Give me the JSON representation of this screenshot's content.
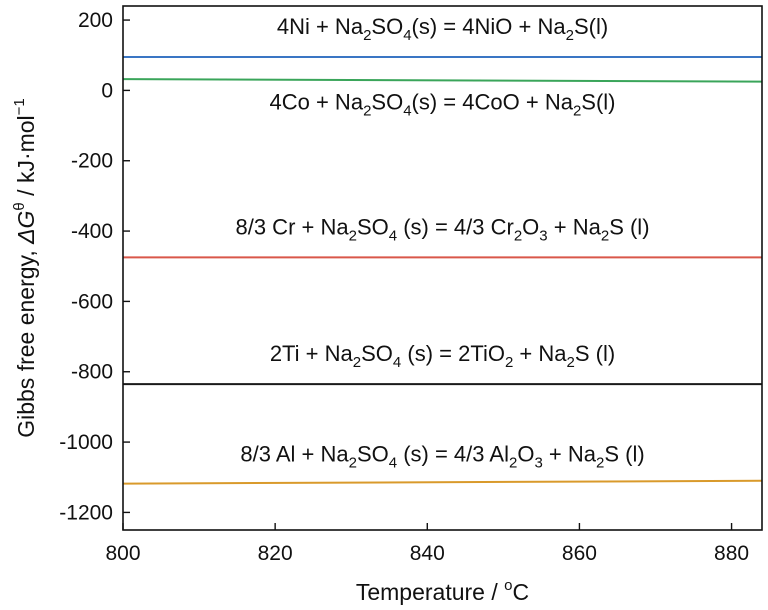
{
  "chart_data": {
    "type": "line",
    "xlabel_main": "Temperature / ",
    "xlabel_sup": "o",
    "xlabel_unit": "C",
    "ylabel_main": "Gibbs free energy, ",
    "ylabel_delta": "ΔG",
    "ylabel_sup_theta": "θ",
    "ylabel_unit": " / kJ·mol",
    "ylabel_sup_exp": "−1",
    "xlim": [
      800,
      884
    ],
    "ylim": [
      -1250,
      240
    ],
    "xticks": [
      800,
      820,
      840,
      860,
      880
    ],
    "yticks": [
      200,
      0,
      -200,
      -400,
      -600,
      -800,
      -1000,
      -1200
    ],
    "grid": false,
    "series": [
      {
        "color": "#3a76c4",
        "x": [
          800,
          884
        ],
        "y": [
          95,
          95
        ],
        "annotation": [
          {
            "t": "4Ni + Na"
          },
          {
            "t": "2",
            "sub": true
          },
          {
            "t": "SO"
          },
          {
            "t": "4",
            "sub": true
          },
          {
            "t": "(s) = 4NiO + Na"
          },
          {
            "t": "2",
            "sub": true
          },
          {
            "t": "S(l)"
          }
        ],
        "label_x": 842,
        "label_y": 160
      },
      {
        "color": "#3aa55a",
        "x": [
          800,
          884
        ],
        "y": [
          32,
          25
        ],
        "annotation": [
          {
            "t": "4Co + Na"
          },
          {
            "t": "2",
            "sub": true
          },
          {
            "t": "SO"
          },
          {
            "t": "4",
            "sub": true
          },
          {
            "t": "(s) = 4CoO + Na"
          },
          {
            "t": "2",
            "sub": true
          },
          {
            "t": "S(l)"
          }
        ],
        "label_x": 842,
        "label_y": -55
      },
      {
        "color": "#d9574a",
        "x": [
          800,
          884
        ],
        "y": [
          -475,
          -475
        ],
        "annotation": [
          {
            "t": "8/3 Cr + Na"
          },
          {
            "t": "2",
            "sub": true
          },
          {
            "t": "SO"
          },
          {
            "t": "4",
            "sub": true
          },
          {
            "t": " (s) = 4/3 Cr"
          },
          {
            "t": "2",
            "sub": true
          },
          {
            "t": "O"
          },
          {
            "t": "3",
            "sub": true
          },
          {
            "t": " + Na"
          },
          {
            "t": "2",
            "sub": true
          },
          {
            "t": "S (l)"
          }
        ],
        "label_x": 842,
        "label_y": -410
      },
      {
        "color": "#1a1a1a",
        "x": [
          800,
          884
        ],
        "y": [
          -835,
          -835
        ],
        "annotation": [
          {
            "t": "2Ti + Na"
          },
          {
            "t": "2",
            "sub": true
          },
          {
            "t": "SO"
          },
          {
            "t": "4",
            "sub": true
          },
          {
            "t": " (s) = 2TiO"
          },
          {
            "t": "2",
            "sub": true
          },
          {
            "t": " + Na"
          },
          {
            "t": "2",
            "sub": true
          },
          {
            "t": "S (l)"
          }
        ],
        "label_x": 842,
        "label_y": -770
      },
      {
        "color": "#d99a2b",
        "x": [
          800,
          884
        ],
        "y": [
          -1118,
          -1110
        ],
        "annotation": [
          {
            "t": "8/3 Al + Na"
          },
          {
            "t": "2",
            "sub": true
          },
          {
            "t": "SO"
          },
          {
            "t": "4",
            "sub": true
          },
          {
            "t": " (s) = 4/3 Al"
          },
          {
            "t": "2",
            "sub": true
          },
          {
            "t": "O"
          },
          {
            "t": "3",
            "sub": true
          },
          {
            "t": " + Na"
          },
          {
            "t": "2",
            "sub": true
          },
          {
            "t": "S (l)"
          }
        ],
        "label_x": 842,
        "label_y": -1055
      }
    ]
  }
}
